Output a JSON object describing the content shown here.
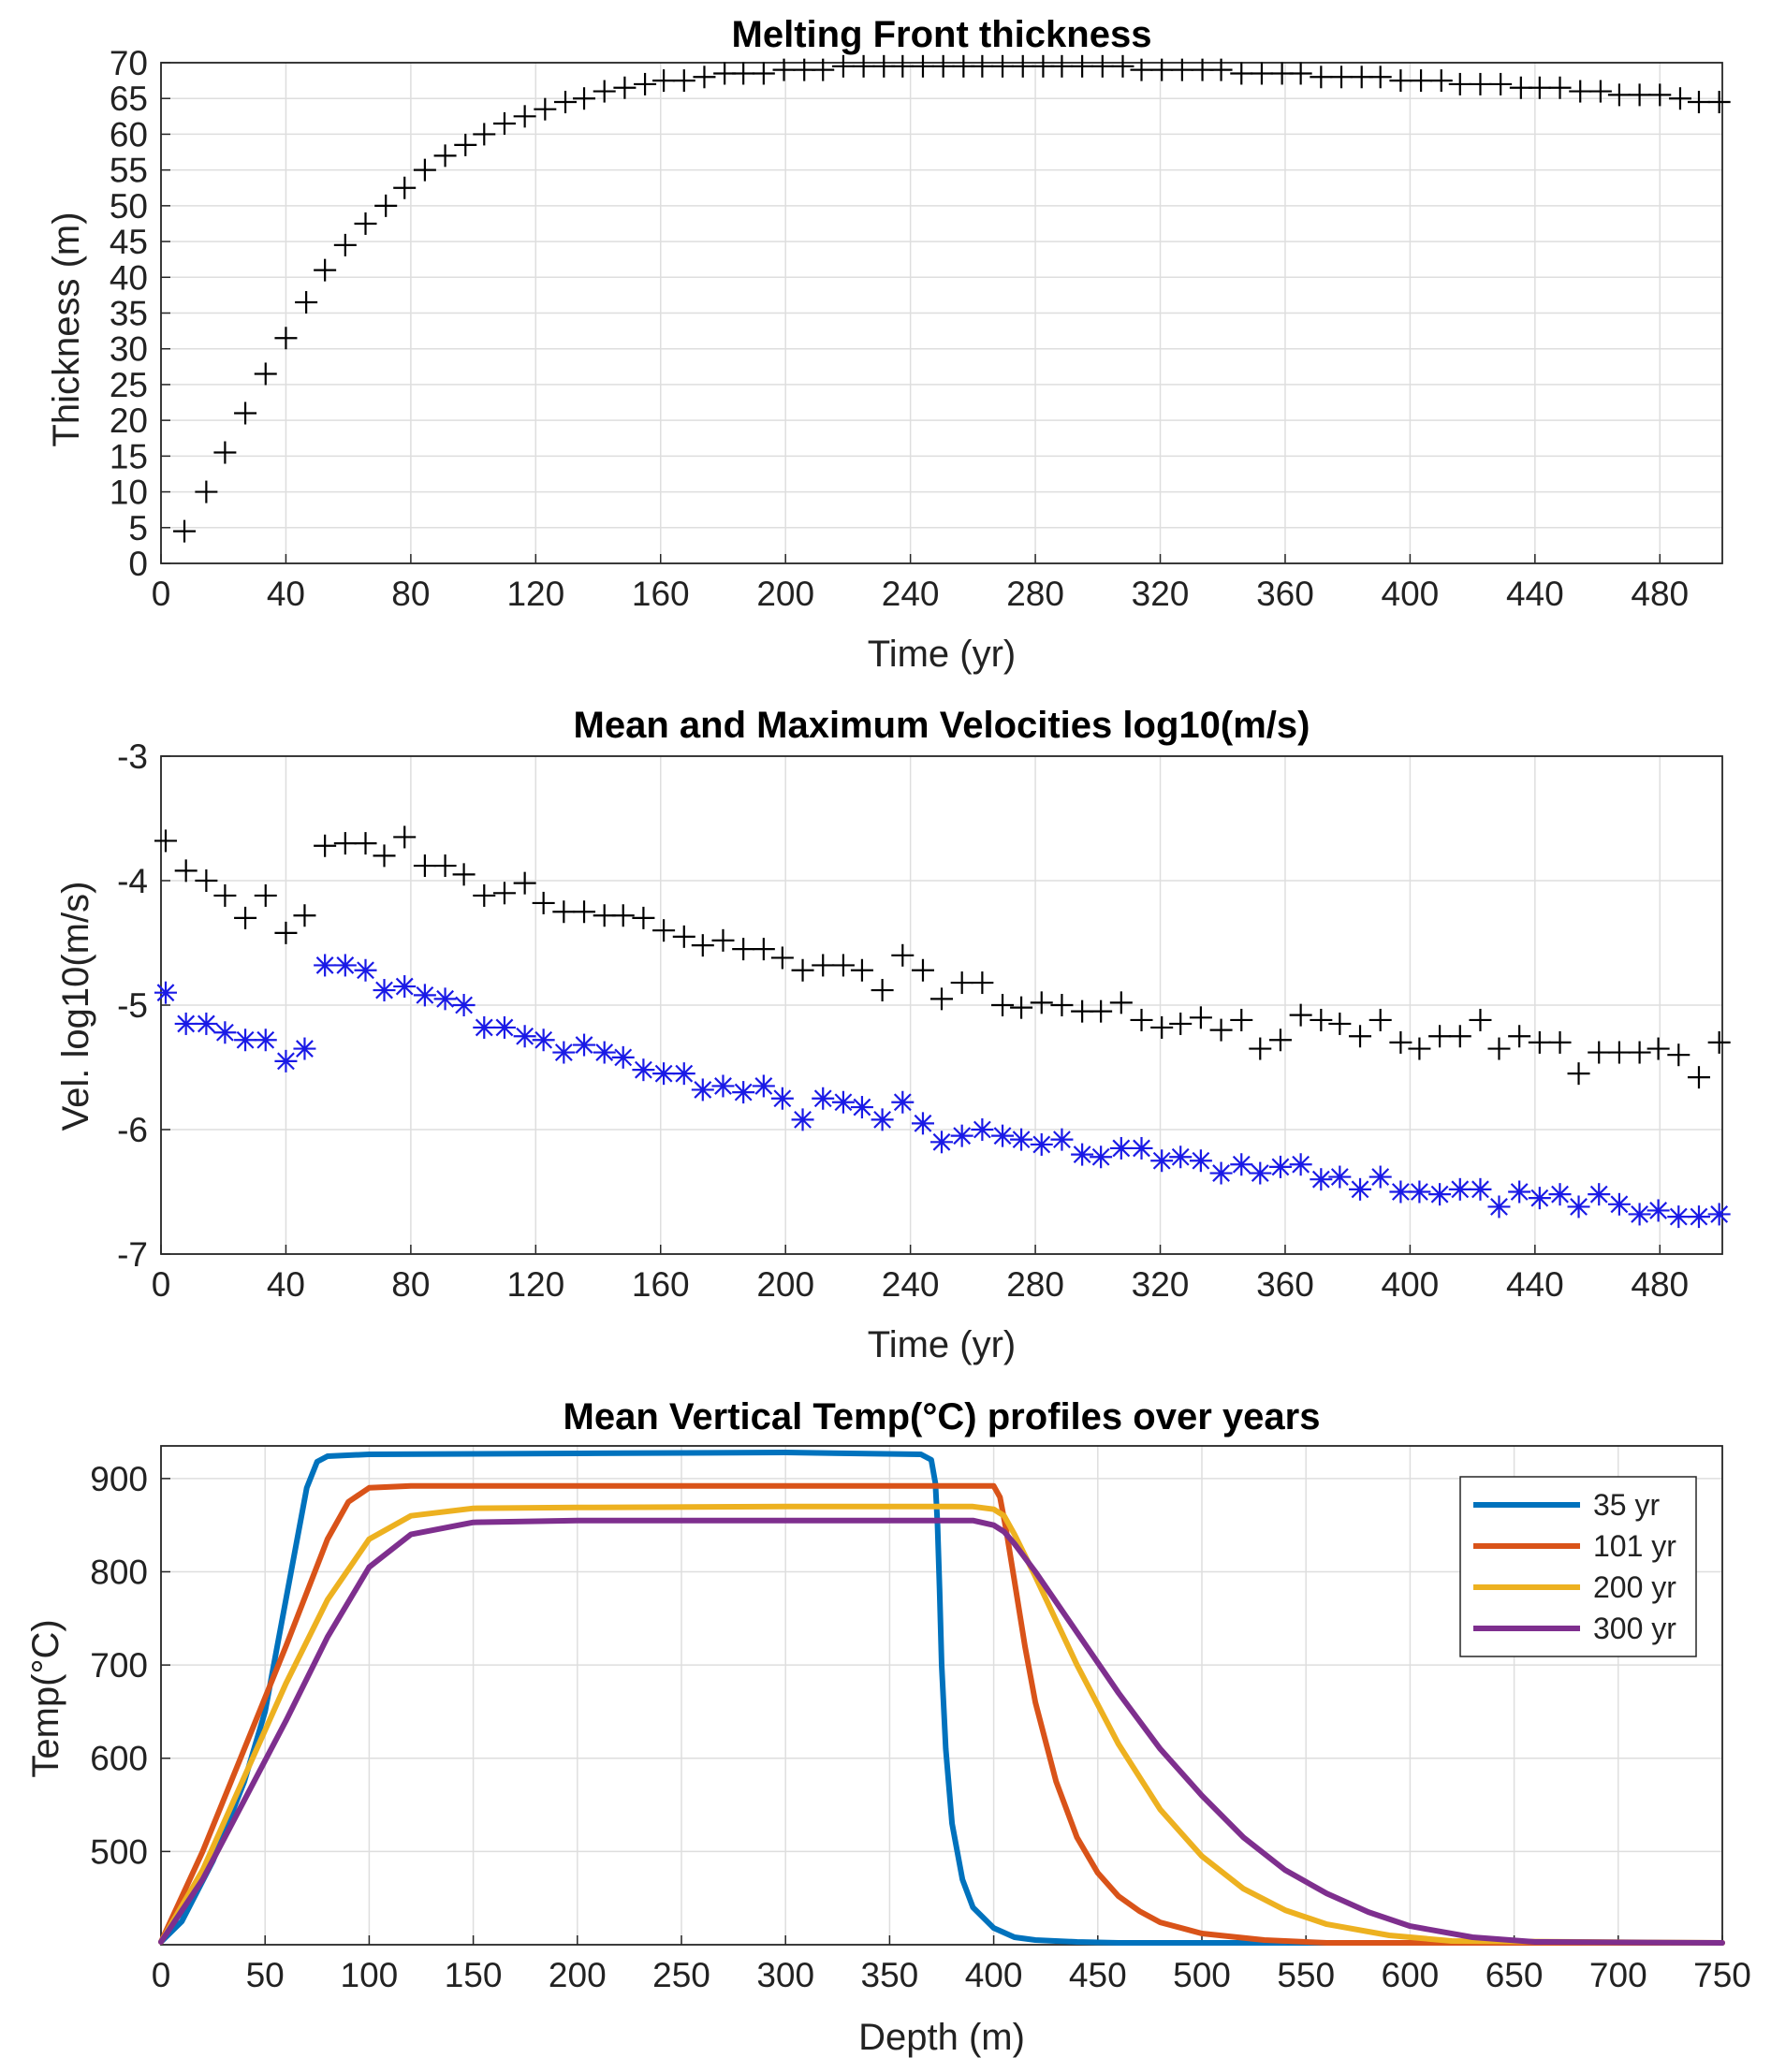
{
  "chart_data": [
    {
      "type": "scatter",
      "title": "Melting Front thickness",
      "xlabel": "Time (yr)",
      "ylabel": "Thickness (m)",
      "xlim": [
        0,
        500
      ],
      "ylim": [
        0,
        70
      ],
      "xticks": [
        0,
        40,
        80,
        120,
        160,
        200,
        240,
        280,
        320,
        360,
        400,
        440,
        480
      ],
      "yticks": [
        0,
        5,
        10,
        15,
        20,
        25,
        30,
        35,
        40,
        45,
        50,
        55,
        60,
        65,
        70
      ],
      "grid": true,
      "series": [
        {
          "marker": "+",
          "color": "#000000",
          "x": [
            7.5,
            14.5,
            20.5,
            27,
            33.5,
            40,
            46.5,
            52.5,
            59,
            65.5,
            72,
            78,
            84.5,
            91,
            97.5,
            103.5,
            110,
            116.5,
            123,
            129.5,
            135.5,
            142,
            148.5,
            155,
            161,
            167.5,
            174,
            180.5,
            186.5,
            193,
            199.5,
            206,
            212,
            218.5,
            225,
            231.5,
            237.5,
            244,
            250.5,
            257,
            263,
            269.5,
            276,
            282.5,
            288.5,
            295,
            301.5,
            308,
            314,
            320.5,
            327,
            333.5,
            339.5,
            346,
            352.5,
            359,
            365,
            371.5,
            378,
            384.5,
            390.5,
            397,
            403.5,
            410,
            416,
            422.5,
            429,
            435.5,
            441.5,
            448,
            454.5,
            461,
            467,
            473.5,
            480,
            486.5,
            492.5,
            499
          ],
          "y": [
            4.5,
            10,
            15.5,
            21,
            26.5,
            31.5,
            36.5,
            41,
            44.5,
            47.5,
            50,
            52.5,
            55,
            57,
            58.5,
            60,
            61.5,
            62.5,
            63.5,
            64.5,
            65,
            66,
            66.5,
            67,
            67.5,
            67.5,
            68,
            68.5,
            68.5,
            68.5,
            69,
            69,
            69,
            69.5,
            69.5,
            69.5,
            69.5,
            69.5,
            69.5,
            69.5,
            69.5,
            69.5,
            69.5,
            69.5,
            69.5,
            69.5,
            69.5,
            69.5,
            69,
            69,
            69,
            69,
            69,
            68.5,
            68.5,
            68.5,
            68.5,
            68,
            68,
            68,
            68,
            67.5,
            67.5,
            67.5,
            67,
            67,
            67,
            66.5,
            66.5,
            66.5,
            66,
            66,
            65.5,
            65.5,
            65.5,
            65,
            64.5,
            64.5
          ]
        }
      ]
    },
    {
      "type": "scatter",
      "title": "Mean and Maximum Velocities log10(m/s)",
      "xlabel": "Time (yr)",
      "ylabel": "Vel. log10(m/s)",
      "xlim": [
        0,
        500
      ],
      "ylim": [
        -7,
        -3
      ],
      "xticks": [
        0,
        40,
        80,
        120,
        160,
        200,
        240,
        280,
        320,
        360,
        400,
        440,
        480
      ],
      "yticks": [
        -3,
        -4,
        -5,
        -6,
        -7
      ],
      "grid": true,
      "series": [
        {
          "marker": "+",
          "color": "#000000",
          "x": [
            1.5,
            8,
            14.5,
            20.5,
            27,
            33.5,
            40,
            46,
            52.5,
            59,
            65.5,
            71.5,
            78,
            84.5,
            91,
            97,
            103.5,
            110,
            116.5,
            122.5,
            129,
            135.5,
            142,
            148,
            154.5,
            161,
            167.5,
            173.5,
            180,
            186.5,
            193,
            199,
            205.5,
            212,
            218.5,
            224.5,
            231,
            237.5,
            244,
            250,
            256.5,
            263,
            269.5,
            275.5,
            282,
            288.5,
            295,
            301,
            307.5,
            314,
            320.5,
            326.5,
            333,
            339.5,
            346,
            352,
            358.5,
            365,
            371.5,
            377.5,
            384,
            390.5,
            397,
            403,
            409.5,
            416,
            422.5,
            428.5,
            435,
            441.5,
            448,
            454,
            460.5,
            467,
            473.5,
            479.5,
            486,
            492.5,
            499
          ],
          "y": [
            -3.68,
            -3.92,
            -4.0,
            -4.12,
            -4.3,
            -4.12,
            -4.42,
            -4.28,
            -3.72,
            -3.7,
            -3.7,
            -3.8,
            -3.65,
            -3.88,
            -3.88,
            -3.95,
            -4.12,
            -4.1,
            -4.02,
            -4.18,
            -4.25,
            -4.25,
            -4.28,
            -4.28,
            -4.3,
            -4.4,
            -4.45,
            -4.52,
            -4.48,
            -4.55,
            -4.55,
            -4.62,
            -4.72,
            -4.68,
            -4.68,
            -4.72,
            -4.88,
            -4.6,
            -4.72,
            -4.95,
            -4.82,
            -4.82,
            -5.0,
            -5.02,
            -4.98,
            -5.0,
            -5.05,
            -5.05,
            -4.98,
            -5.12,
            -5.18,
            -5.15,
            -5.1,
            -5.2,
            -5.12,
            -5.35,
            -5.28,
            -5.08,
            -5.12,
            -5.15,
            -5.25,
            -5.12,
            -5.3,
            -5.35,
            -5.25,
            -5.25,
            -5.12,
            -5.35,
            -5.25,
            -5.3,
            -5.3,
            -5.55,
            -5.38,
            -5.38,
            -5.38,
            -5.35,
            -5.4,
            -5.58,
            -5.3
          ]
        },
        {
          "marker": "*",
          "color": "#1a1ae6",
          "x": [
            1.5,
            8,
            14.5,
            20.5,
            27,
            33.5,
            40,
            46,
            52.5,
            59,
            65.5,
            71.5,
            78,
            84.5,
            91,
            97,
            103.5,
            110,
            116.5,
            122.5,
            129,
            135.5,
            142,
            148,
            154.5,
            161,
            167.5,
            173.5,
            180,
            186.5,
            193,
            199,
            205.5,
            212,
            218.5,
            224.5,
            231,
            237.5,
            244,
            250,
            256.5,
            263,
            269.5,
            275.5,
            282,
            288.5,
            295,
            301,
            307.5,
            314,
            320.5,
            326.5,
            333,
            339.5,
            346,
            352,
            358.5,
            365,
            371.5,
            377.5,
            384,
            390.5,
            397,
            403,
            409.5,
            416,
            422.5,
            428.5,
            435,
            441.5,
            448,
            454,
            460.5,
            467,
            473.5,
            479.5,
            486,
            492.5,
            499
          ],
          "y": [
            -4.9,
            -5.15,
            -5.15,
            -5.22,
            -5.28,
            -5.28,
            -5.45,
            -5.35,
            -4.68,
            -4.68,
            -4.72,
            -4.88,
            -4.85,
            -4.92,
            -4.95,
            -5.0,
            -5.18,
            -5.18,
            -5.25,
            -5.28,
            -5.38,
            -5.32,
            -5.38,
            -5.42,
            -5.52,
            -5.55,
            -5.55,
            -5.68,
            -5.65,
            -5.7,
            -5.65,
            -5.75,
            -5.92,
            -5.75,
            -5.78,
            -5.82,
            -5.92,
            -5.78,
            -5.95,
            -6.1,
            -6.05,
            -6.0,
            -6.05,
            -6.08,
            -6.12,
            -6.08,
            -6.2,
            -6.22,
            -6.15,
            -6.15,
            -6.25,
            -6.22,
            -6.25,
            -6.35,
            -6.28,
            -6.35,
            -6.3,
            -6.28,
            -6.4,
            -6.38,
            -6.48,
            -6.38,
            -6.5,
            -6.5,
            -6.52,
            -6.48,
            -6.48,
            -6.62,
            -6.5,
            -6.55,
            -6.52,
            -6.62,
            -6.52,
            -6.6,
            -6.68,
            -6.65,
            -6.7,
            -6.7,
            -6.68
          ]
        }
      ]
    },
    {
      "type": "line",
      "title": "Mean Vertical Temp(°C) profiles over years",
      "xlabel": "Depth (m)",
      "ylabel": "Temp(°C)",
      "xlim": [
        0,
        750
      ],
      "ylim": [
        400,
        935
      ],
      "xticks": [
        0,
        50,
        100,
        150,
        200,
        250,
        300,
        350,
        400,
        450,
        500,
        550,
        600,
        650,
        700,
        750
      ],
      "yticks": [
        500,
        600,
        700,
        800,
        900
      ],
      "grid": true,
      "legend_position": "top-right",
      "series": [
        {
          "name": "35 yr",
          "color": "#0072bd",
          "x": [
            0,
            10,
            25,
            40,
            50,
            60,
            70,
            75,
            80,
            100,
            200,
            300,
            365,
            370,
            372,
            373,
            374,
            375,
            377,
            380,
            385,
            390,
            400,
            410,
            420,
            440,
            460,
            500,
            600,
            750
          ],
          "y": [
            403,
            425,
            490,
            575,
            650,
            770,
            890,
            918,
            924,
            926,
            927,
            928,
            926,
            920,
            895,
            850,
            780,
            700,
            610,
            530,
            470,
            440,
            418,
            408,
            405,
            403,
            402,
            402,
            402,
            402
          ]
        },
        {
          "name": "101 yr",
          "color": "#d95319",
          "x": [
            0,
            20,
            40,
            60,
            80,
            90,
            100,
            120,
            200,
            300,
            400,
            403,
            406,
            410,
            415,
            420,
            430,
            440,
            450,
            460,
            470,
            480,
            500,
            530,
            560,
            750
          ],
          "y": [
            403,
            500,
            610,
            720,
            835,
            875,
            890,
            892,
            892,
            892,
            892,
            880,
            845,
            790,
            720,
            660,
            575,
            515,
            477,
            452,
            436,
            424,
            412,
            405,
            402,
            402
          ]
        },
        {
          "name": "200 yr",
          "color": "#edb120",
          "x": [
            0,
            20,
            40,
            60,
            80,
            100,
            120,
            150,
            200,
            300,
            390,
            400,
            405,
            410,
            420,
            440,
            460,
            480,
            500,
            520,
            540,
            560,
            590,
            620,
            750
          ],
          "y": [
            403,
            480,
            580,
            680,
            770,
            835,
            860,
            868,
            869,
            870,
            870,
            867,
            860,
            840,
            795,
            700,
            615,
            545,
            495,
            460,
            437,
            422,
            410,
            404,
            402
          ]
        },
        {
          "name": "300 yr",
          "color": "#7e2f8e",
          "x": [
            0,
            20,
            40,
            60,
            80,
            100,
            120,
            150,
            200,
            300,
            390,
            400,
            405,
            410,
            420,
            440,
            460,
            480,
            500,
            520,
            540,
            560,
            580,
            600,
            630,
            660,
            750
          ],
          "y": [
            403,
            470,
            555,
            640,
            730,
            805,
            840,
            853,
            855,
            855,
            855,
            850,
            843,
            830,
            800,
            735,
            670,
            610,
            560,
            515,
            480,
            455,
            435,
            420,
            408,
            403,
            402
          ]
        }
      ]
    }
  ]
}
